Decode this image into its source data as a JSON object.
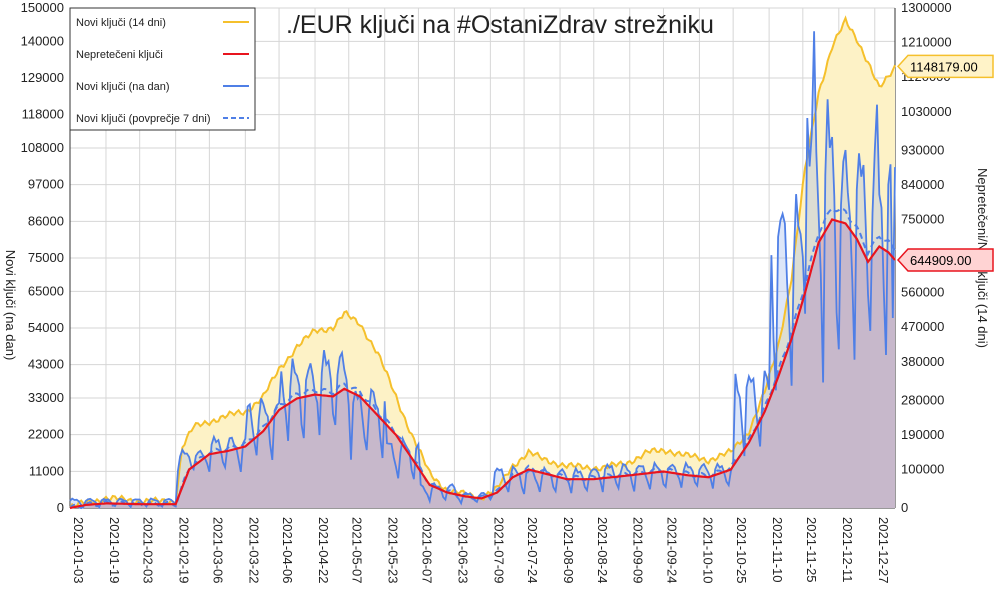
{
  "chart_data": {
    "type": "line",
    "title": "./EUR ključi na #OstaniZdrav strežniku",
    "ylabel_left": "Novi ključi (na dan)",
    "ylabel_right": "Nepretečeni/Novi ključi (14 dni)",
    "left_axis": {
      "min": 0,
      "max": 150000,
      "ticks": [
        0,
        11000,
        22000,
        33000,
        43000,
        54000,
        65000,
        75000,
        86000,
        97000,
        108000,
        118000,
        129000,
        140000,
        150000
      ]
    },
    "right_axis": {
      "min": 0,
      "max": 1300000,
      "ticks": [
        0,
        100000,
        190000,
        280000,
        380000,
        470000,
        560000,
        650000,
        750000,
        840000,
        930000,
        1030000,
        1120000,
        1210000,
        1300000
      ]
    },
    "x_ticks": [
      "2021-01-03",
      "2021-01-19",
      "2021-02-03",
      "2021-02-19",
      "2021-03-06",
      "2021-03-22",
      "2021-04-06",
      "2021-04-22",
      "2021-05-07",
      "2021-05-23",
      "2021-06-07",
      "2021-06-23",
      "2021-07-09",
      "2021-07-24",
      "2021-08-09",
      "2021-08-24",
      "2021-09-09",
      "2021-09-24",
      "2021-10-10",
      "2021-10-25",
      "2021-11-10",
      "2021-11-25",
      "2021-12-11",
      "2021-12-27"
    ],
    "x_start": "2021-01-03",
    "x_end": "2022-01-05",
    "legend": {
      "position": "top-left",
      "entries": [
        {
          "label": "Novi ključi (14 dni)",
          "color": "#f5c02c",
          "style": "solid"
        },
        {
          "label": "Nepretečeni ključi",
          "color": "#e8141e",
          "style": "solid"
        },
        {
          "label": "Novi ključi (na dan)",
          "color": "#4f7fe6",
          "style": "solid"
        },
        {
          "label": "Novi ključi (povprečje 7 dni)",
          "color": "#4f7fe6",
          "style": "dashed"
        }
      ]
    },
    "badges": [
      {
        "label": "1148179.00",
        "axis": "right",
        "value": 1148179,
        "color": "#f5c02c",
        "fill": "#fff3c8"
      },
      {
        "label": "644909.00",
        "axis": "right",
        "value": 644909,
        "color": "#e8141e",
        "fill": "#ffd3d3"
      }
    ],
    "series": [
      {
        "name": "Novi ključi (14 dni)",
        "axis": "right",
        "color": "#f5c02c",
        "area_fill": "#fdf2c6",
        "points": [
          [
            "2021-01-03",
            0
          ],
          [
            "2021-01-10",
            15000
          ],
          [
            "2021-01-19",
            25000
          ],
          [
            "2021-01-27",
            22000
          ],
          [
            "2021-02-03",
            18000
          ],
          [
            "2021-02-12",
            17000
          ],
          [
            "2021-02-19",
            18000
          ],
          [
            "2021-02-22",
            160000
          ],
          [
            "2021-02-27",
            210000
          ],
          [
            "2021-03-06",
            225000
          ],
          [
            "2021-03-14",
            240000
          ],
          [
            "2021-03-22",
            250000
          ],
          [
            "2021-03-30",
            290000
          ],
          [
            "2021-04-06",
            360000
          ],
          [
            "2021-04-14",
            420000
          ],
          [
            "2021-04-22",
            460000
          ],
          [
            "2021-04-30",
            470000
          ],
          [
            "2021-05-05",
            505000
          ],
          [
            "2021-05-12",
            480000
          ],
          [
            "2021-05-20",
            400000
          ],
          [
            "2021-05-28",
            290000
          ],
          [
            "2021-06-04",
            190000
          ],
          [
            "2021-06-12",
            90000
          ],
          [
            "2021-06-20",
            45000
          ],
          [
            "2021-06-28",
            35000
          ],
          [
            "2021-07-05",
            28000
          ],
          [
            "2021-07-12",
            50000
          ],
          [
            "2021-07-19",
            110000
          ],
          [
            "2021-07-26",
            145000
          ],
          [
            "2021-08-02",
            125000
          ],
          [
            "2021-08-12",
            110000
          ],
          [
            "2021-08-20",
            105000
          ],
          [
            "2021-08-28",
            105000
          ],
          [
            "2021-09-07",
            115000
          ],
          [
            "2021-09-17",
            145000
          ],
          [
            "2021-09-26",
            150000
          ],
          [
            "2021-10-05",
            135000
          ],
          [
            "2021-10-14",
            125000
          ],
          [
            "2021-10-24",
            145000
          ],
          [
            "2021-11-01",
            200000
          ],
          [
            "2021-11-08",
            300000
          ],
          [
            "2021-11-14",
            420000
          ],
          [
            "2021-11-20",
            600000
          ],
          [
            "2021-11-26",
            880000
          ],
          [
            "2021-12-02",
            1080000
          ],
          [
            "2021-12-08",
            1200000
          ],
          [
            "2021-12-14",
            1265000
          ],
          [
            "2021-12-19",
            1220000
          ],
          [
            "2021-12-24",
            1160000
          ],
          [
            "2021-12-29",
            1090000
          ],
          [
            "2022-01-02",
            1120000
          ],
          [
            "2022-01-05",
            1148179
          ]
        ]
      },
      {
        "name": "Nepretečeni ključi",
        "axis": "right",
        "color": "#e8141e",
        "area_fill": "#d9b2b9",
        "points": [
          [
            "2021-01-03",
            0
          ],
          [
            "2021-01-10",
            8000
          ],
          [
            "2021-01-19",
            12000
          ],
          [
            "2021-02-03",
            10000
          ],
          [
            "2021-02-19",
            10000
          ],
          [
            "2021-02-25",
            100000
          ],
          [
            "2021-03-06",
            140000
          ],
          [
            "2021-03-14",
            148000
          ],
          [
            "2021-03-22",
            160000
          ],
          [
            "2021-03-30",
            200000
          ],
          [
            "2021-04-06",
            255000
          ],
          [
            "2021-04-14",
            285000
          ],
          [
            "2021-04-22",
            295000
          ],
          [
            "2021-04-30",
            290000
          ],
          [
            "2021-05-05",
            310000
          ],
          [
            "2021-05-12",
            290000
          ],
          [
            "2021-05-20",
            240000
          ],
          [
            "2021-05-28",
            190000
          ],
          [
            "2021-06-04",
            130000
          ],
          [
            "2021-06-12",
            60000
          ],
          [
            "2021-06-20",
            40000
          ],
          [
            "2021-06-28",
            30000
          ],
          [
            "2021-07-05",
            25000
          ],
          [
            "2021-07-12",
            40000
          ],
          [
            "2021-07-19",
            80000
          ],
          [
            "2021-07-26",
            100000
          ],
          [
            "2021-08-02",
            90000
          ],
          [
            "2021-08-12",
            75000
          ],
          [
            "2021-08-24",
            75000
          ],
          [
            "2021-09-09",
            85000
          ],
          [
            "2021-09-24",
            95000
          ],
          [
            "2021-10-05",
            85000
          ],
          [
            "2021-10-14",
            80000
          ],
          [
            "2021-10-24",
            100000
          ],
          [
            "2021-11-01",
            170000
          ],
          [
            "2021-11-08",
            250000
          ],
          [
            "2021-11-14",
            340000
          ],
          [
            "2021-11-20",
            440000
          ],
          [
            "2021-11-26",
            560000
          ],
          [
            "2021-12-02",
            690000
          ],
          [
            "2021-12-08",
            750000
          ],
          [
            "2021-12-14",
            740000
          ],
          [
            "2021-12-19",
            700000
          ],
          [
            "2021-12-24",
            640000
          ],
          [
            "2021-12-29",
            680000
          ],
          [
            "2022-01-02",
            665000
          ],
          [
            "2022-01-05",
            644909
          ]
        ]
      },
      {
        "name": "Novi ključi (na dan)",
        "axis": "left",
        "color": "#4f7fe6",
        "segments": [
          {
            "from": "2021-01-03",
            "to": "2021-02-19",
            "base": 1500,
            "amp": 1200
          },
          {
            "from": "2021-02-20",
            "to": "2021-03-06",
            "base": 14000,
            "amp": 3000
          },
          {
            "from": "2021-03-07",
            "to": "2021-03-22",
            "base": 16000,
            "amp": 5000
          },
          {
            "from": "2021-03-23",
            "to": "2021-04-06",
            "base": 23000,
            "amp": 9000
          },
          {
            "from": "2021-04-07",
            "to": "2021-04-22",
            "base": 31000,
            "amp": 12000
          },
          {
            "from": "2021-04-23",
            "to": "2021-05-07",
            "base": 34000,
            "amp": 12000
          },
          {
            "from": "2021-05-08",
            "to": "2021-05-23",
            "base": 25000,
            "amp": 10000
          },
          {
            "from": "2021-05-24",
            "to": "2021-06-07",
            "base": 14000,
            "amp": 6000
          },
          {
            "from": "2021-06-08",
            "to": "2021-06-23",
            "base": 4500,
            "amp": 2500
          },
          {
            "from": "2021-06-24",
            "to": "2021-07-09",
            "base": 3000,
            "amp": 1500
          },
          {
            "from": "2021-07-10",
            "to": "2021-07-24",
            "base": 8000,
            "amp": 4000
          },
          {
            "from": "2021-07-25",
            "to": "2021-08-24",
            "base": 8000,
            "amp": 3500
          },
          {
            "from": "2021-08-25",
            "to": "2021-09-24",
            "base": 9000,
            "amp": 4000
          },
          {
            "from": "2021-09-25",
            "to": "2021-10-25",
            "base": 9500,
            "amp": 3500
          },
          {
            "from": "2021-10-26",
            "to": "2021-11-10",
            "base": 28000,
            "amp": 12000
          },
          {
            "from": "2021-11-11",
            "to": "2021-11-25",
            "base": 62000,
            "amp": 28000
          },
          {
            "from": "2021-11-26",
            "to": "2021-12-11",
            "base": 78000,
            "amp": 40000
          },
          {
            "from": "2021-12-12",
            "to": "2022-01-05",
            "base": 76000,
            "amp": 30000
          }
        ],
        "peaks": [
          [
            "2021-11-30",
            143000
          ],
          [
            "2021-11-27",
            117000
          ],
          [
            "2021-12-28",
            121000
          ],
          [
            "2022-01-04",
            57000
          ]
        ]
      },
      {
        "name": "Novi ključi (povprečje 7 dni)",
        "axis": "left",
        "color": "#4f7fe6",
        "style": "dashed",
        "follows": "Nepretečeni ključi"
      }
    ]
  }
}
